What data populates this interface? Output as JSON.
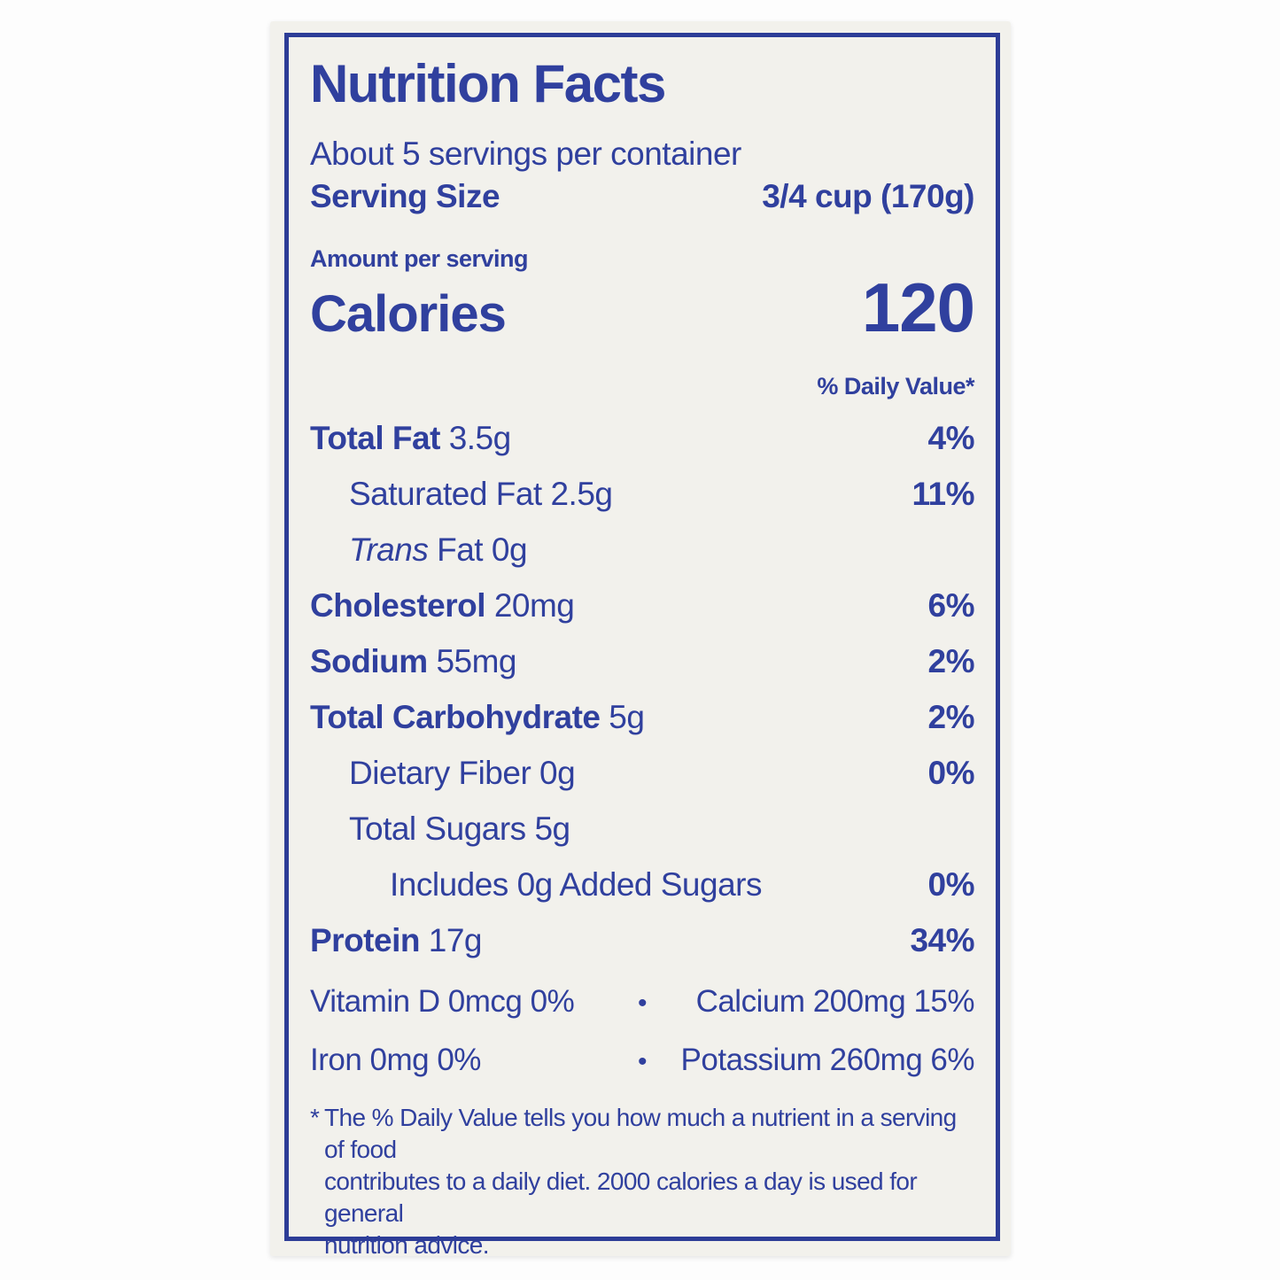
{
  "colors": {
    "accent_blue": "#30409e",
    "bar_blue": "#2d3d97",
    "label_background": "#f2f1ec"
  },
  "label": {
    "title": "Nutrition Facts",
    "servings_per_container": "About 5 servings per container",
    "serving_size_label": "Serving Size",
    "serving_size_value": "3/4 cup (170g)",
    "amount_per_serving": "Amount per serving",
    "calories_label": "Calories",
    "calories_value": "120",
    "daily_value_header": "% Daily Value*",
    "rows": [
      {
        "bold": "Total Fat",
        "italic": "",
        "regular": " 3.5g",
        "dv": "4%"
      },
      {
        "bold": "",
        "italic": "",
        "regular": "Saturated Fat 2.5g",
        "dv": "11%"
      },
      {
        "bold": "",
        "italic": "Trans",
        "regular": " Fat 0g",
        "dv": ""
      },
      {
        "bold": "Cholesterol",
        "italic": "",
        "regular": " 20mg",
        "dv": "6%"
      },
      {
        "bold": "Sodium",
        "italic": "",
        "regular": " 55mg",
        "dv": "2%"
      },
      {
        "bold": "Total Carbohydrate",
        "italic": "",
        "regular": " 5g",
        "dv": "2%"
      },
      {
        "bold": "",
        "italic": "",
        "regular": "Dietary Fiber 0g",
        "dv": "0%"
      },
      {
        "bold": "",
        "italic": "",
        "regular": "Total Sugars 5g",
        "dv": ""
      },
      {
        "bold": "",
        "italic": "",
        "regular": "Includes 0g Added Sugars",
        "dv": "0%"
      },
      {
        "bold": "Protein",
        "italic": "",
        "regular": " 17g",
        "dv": "34%"
      }
    ],
    "micronutrients": {
      "bullet": "•",
      "row1_left": "Vitamin D 0mcg 0%",
      "row1_right": "Calcium 200mg 15%",
      "row2_left": "Iron 0mg 0%",
      "row2_right": "Potassium 260mg 6%"
    },
    "footnote_marker": "*",
    "footnote_lines": [
      "The % Daily Value tells you how much a nutrient in a serving of food",
      "contributes to a daily diet. 2000 calories a day is used for general",
      "nutrition advice."
    ]
  }
}
